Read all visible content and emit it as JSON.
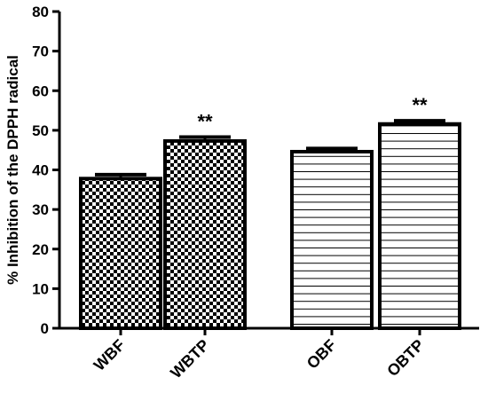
{
  "chart_data": {
    "type": "bar",
    "ylabel": "% Inhibition of the DPPH radical",
    "xlabel": "",
    "ylim": [
      0,
      80
    ],
    "yticks": [
      0,
      10,
      20,
      30,
      40,
      50,
      60,
      70,
      80
    ],
    "grid": false,
    "categories": [
      "WBF",
      "WBTP",
      "OBF",
      "OBTP"
    ],
    "values": [
      37.8,
      47.3,
      44.6,
      51.6
    ],
    "errors": [
      1.0,
      1.0,
      0.8,
      0.8
    ],
    "patterns": [
      "checker",
      "checker",
      "hlines",
      "hlines"
    ],
    "annotations": [
      "",
      "**",
      "",
      "**"
    ],
    "bar_fill": "#ffffff",
    "bar_stroke": "#000000"
  }
}
